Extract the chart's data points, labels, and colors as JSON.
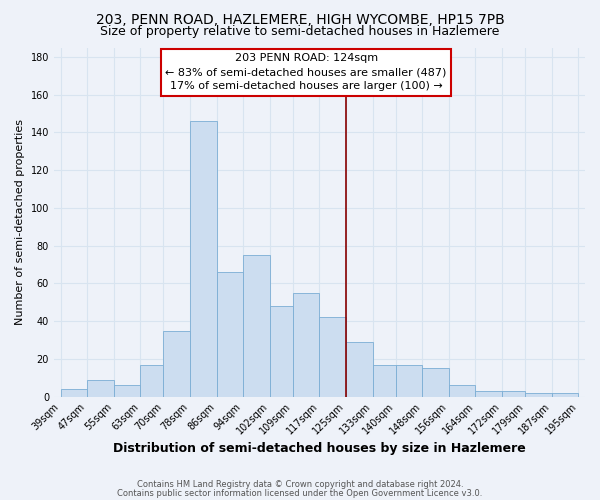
{
  "title": "203, PENN ROAD, HAZLEMERE, HIGH WYCOMBE, HP15 7PB",
  "subtitle": "Size of property relative to semi-detached houses in Hazlemere",
  "xlabel": "Distribution of semi-detached houses by size in Hazlemere",
  "ylabel": "Number of semi-detached properties",
  "bar_labels": [
    "39sqm",
    "47sqm",
    "55sqm",
    "63sqm",
    "70sqm",
    "78sqm",
    "86sqm",
    "94sqm",
    "102sqm",
    "109sqm",
    "117sqm",
    "125sqm",
    "133sqm",
    "140sqm",
    "148sqm",
    "156sqm",
    "164sqm",
    "172sqm",
    "179sqm",
    "187sqm",
    "195sqm"
  ],
  "tick_positions": [
    39,
    47,
    55,
    63,
    70,
    78,
    86,
    94,
    102,
    109,
    117,
    125,
    133,
    140,
    148,
    156,
    164,
    172,
    179,
    187,
    195
  ],
  "bar_values": [
    4,
    9,
    6,
    17,
    35,
    146,
    66,
    75,
    48,
    55,
    42,
    29,
    17,
    17,
    15,
    6,
    3,
    3,
    2,
    2
  ],
  "bar_color": "#ccddf0",
  "bar_edge_color": "#7badd4",
  "property_line_x": 125,
  "property_line_color": "#880000",
  "annotation_title": "203 PENN ROAD: 124sqm",
  "annotation_line1": "← 83% of semi-detached houses are smaller (487)",
  "annotation_line2": "17% of semi-detached houses are larger (100) →",
  "annotation_box_color": "#ffffff",
  "annotation_box_edge": "#cc0000",
  "ylim": [
    0,
    185
  ],
  "yticks": [
    0,
    20,
    40,
    60,
    80,
    100,
    120,
    140,
    160,
    180
  ],
  "footer1": "Contains HM Land Registry data © Crown copyright and database right 2024.",
  "footer2": "Contains public sector information licensed under the Open Government Licence v3.0.",
  "background_color": "#eef2f9",
  "grid_color": "#d8e4f0",
  "title_fontsize": 10,
  "subtitle_fontsize": 9,
  "tick_fontsize": 7,
  "ylabel_fontsize": 8,
  "xlabel_fontsize": 9,
  "annotation_fontsize": 8
}
